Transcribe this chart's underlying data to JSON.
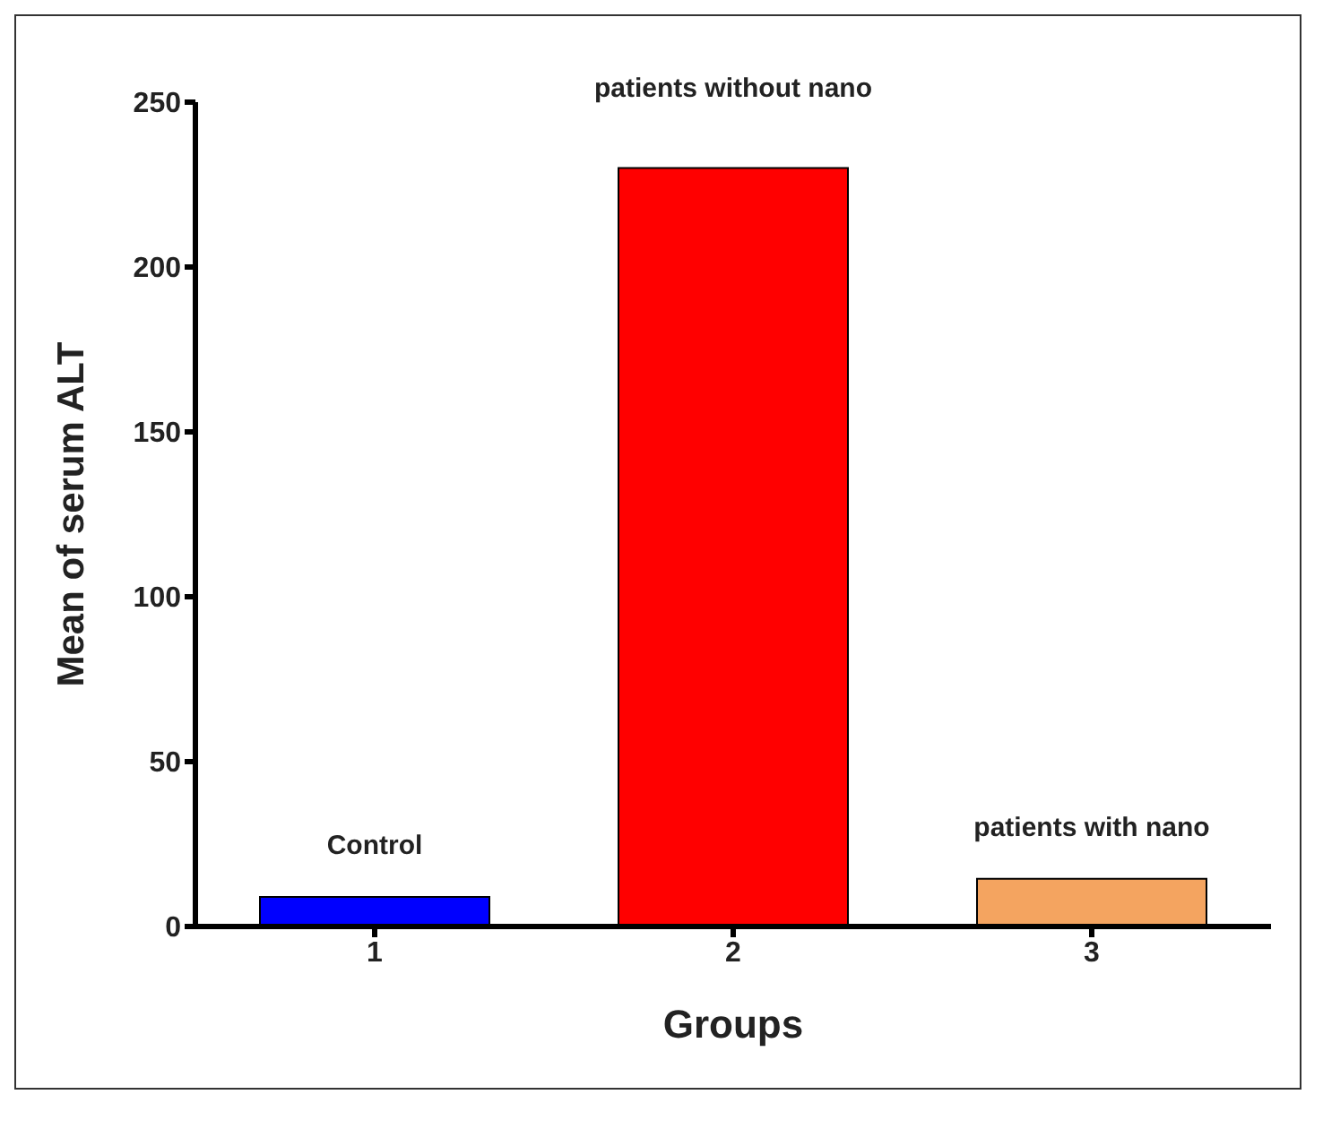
{
  "chart_data": {
    "type": "bar",
    "xlabel": "Groups",
    "ylabel": "Mean of serum ALT",
    "categories": [
      "1",
      "2",
      "3"
    ],
    "values": [
      9,
      230,
      14.5
    ],
    "colors": [
      "#0000ff",
      "#ff0000",
      "#f4a460"
    ],
    "ylim": [
      0,
      250
    ],
    "yticks": [
      0,
      50,
      100,
      150,
      200,
      250
    ],
    "grid": false,
    "legend": false,
    "annotations": [
      "Control",
      "patients without nano",
      "patients with nano"
    ]
  }
}
